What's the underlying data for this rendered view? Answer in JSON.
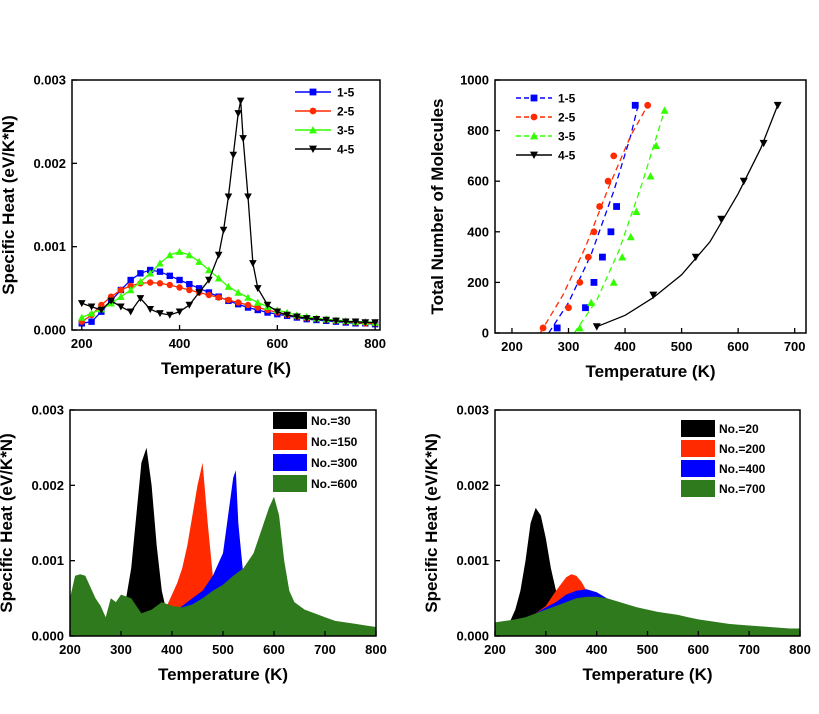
{
  "chart_data": [
    {
      "id": "a",
      "type": "line",
      "xlabel": "Temperature (K)",
      "ylabel": "Specific Heat (eV/K*N)",
      "xlim": [
        180,
        810
      ],
      "ylim": [
        0,
        0.003
      ],
      "xticks": [
        200,
        400,
        600,
        800
      ],
      "yticks": [
        0,
        0.001,
        0.002,
        0.003
      ],
      "ytick_labels": [
        "0.000",
        "0.001",
        "0.002",
        "0.003"
      ],
      "legend_position": "top-right",
      "series": [
        {
          "name": "1-5",
          "color": "#0000ff",
          "marker": "square",
          "dash": "solid",
          "x": [
            200,
            220,
            240,
            260,
            280,
            300,
            320,
            340,
            360,
            380,
            400,
            420,
            440,
            460,
            480,
            500,
            520,
            540,
            560,
            580,
            600,
            620,
            640,
            660,
            680,
            700,
            720,
            740,
            760,
            780,
            800
          ],
          "y": [
            8e-05,
            0.0001,
            0.00022,
            0.00035,
            0.00048,
            0.0006,
            0.00068,
            0.00072,
            0.0007,
            0.00065,
            0.0006,
            0.00055,
            0.0005,
            0.00045,
            0.0004,
            0.00035,
            0.00031,
            0.00027,
            0.00024,
            0.00021,
            0.00019,
            0.00017,
            0.00015,
            0.00013,
            0.00012,
            0.00011,
            0.0001,
            9e-05,
            8e-05,
            8e-05,
            7e-05
          ]
        },
        {
          "name": "2-5",
          "color": "#ff2a00",
          "marker": "circle",
          "dash": "solid",
          "x": [
            200,
            220,
            240,
            260,
            280,
            300,
            320,
            340,
            360,
            380,
            400,
            420,
            440,
            460,
            480,
            500,
            520,
            540,
            560,
            580,
            600,
            620,
            640,
            660,
            680,
            700,
            720,
            740,
            760,
            780,
            800
          ],
          "y": [
            0.0001,
            0.00018,
            0.0003,
            0.0004,
            0.00048,
            0.00053,
            0.00056,
            0.00057,
            0.00056,
            0.00054,
            0.00051,
            0.00048,
            0.00045,
            0.00042,
            0.00039,
            0.00036,
            0.00033,
            0.0003,
            0.00027,
            0.00024,
            0.00021,
            0.00018,
            0.00016,
            0.00014,
            0.00013,
            0.00012,
            0.00011,
            0.0001,
            9e-05,
            8e-05,
            8e-05
          ]
        },
        {
          "name": "3-5",
          "color": "#33ff00",
          "marker": "triangle-up",
          "dash": "solid",
          "x": [
            200,
            220,
            240,
            260,
            280,
            300,
            320,
            340,
            360,
            380,
            400,
            420,
            440,
            460,
            480,
            500,
            520,
            540,
            560,
            580,
            600,
            620,
            640,
            660,
            680,
            700,
            720,
            740,
            760,
            780,
            800
          ],
          "y": [
            0.00015,
            0.0002,
            0.00025,
            0.00032,
            0.0004,
            0.00048,
            0.00058,
            0.00068,
            0.0008,
            0.0009,
            0.00094,
            0.0009,
            0.00082,
            0.00072,
            0.00062,
            0.00052,
            0.00045,
            0.00039,
            0.00033,
            0.00028,
            0.00024,
            0.00021,
            0.00018,
            0.00016,
            0.00014,
            0.00013,
            0.00012,
            0.00011,
            0.0001,
            0.0001,
            9e-05
          ]
        },
        {
          "name": "4-5",
          "color": "#000000",
          "marker": "triangle-down",
          "dash": "solid",
          "x": [
            200,
            220,
            240,
            260,
            280,
            300,
            320,
            340,
            360,
            380,
            400,
            420,
            440,
            460,
            480,
            490,
            500,
            510,
            520,
            525,
            530,
            540,
            550,
            560,
            580,
            600,
            620,
            640,
            660,
            680,
            700,
            720,
            740,
            760,
            780,
            800
          ],
          "y": [
            0.00032,
            0.00028,
            0.00024,
            0.00035,
            0.00028,
            0.00022,
            0.00038,
            0.00025,
            0.0002,
            0.00018,
            0.00022,
            0.0003,
            0.00045,
            0.0006,
            0.0009,
            0.0012,
            0.0016,
            0.0021,
            0.0026,
            0.00275,
            0.0023,
            0.0016,
            0.0008,
            0.0005,
            0.0003,
            0.00022,
            0.00018,
            0.00016,
            0.00014,
            0.00013,
            0.00012,
            0.00011,
            0.0001,
            0.0001,
            9e-05,
            9e-05
          ]
        }
      ]
    },
    {
      "id": "b",
      "type": "line",
      "xlabel": "Temperature (K)",
      "ylabel": "Total Number of Molecules",
      "xlim": [
        170,
        720
      ],
      "ylim": [
        0,
        1000
      ],
      "xticks": [
        200,
        300,
        400,
        500,
        600,
        700
      ],
      "yticks": [
        0,
        200,
        400,
        600,
        800,
        1000
      ],
      "ytick_labels": [
        "0",
        "200",
        "400",
        "600",
        "800",
        "1000"
      ],
      "legend_position": "top-left",
      "series": [
        {
          "name": "1-5",
          "color": "#0000ff",
          "marker": "square",
          "dash": "dashed",
          "x": [
            280,
            330,
            345,
            360,
            375,
            385,
            418
          ],
          "y": [
            20,
            100,
            200,
            300,
            400,
            500,
            900
          ],
          "fit_x": [
            265,
            300,
            340,
            380,
            410,
            423
          ],
          "fit_y": [
            0,
            120,
            310,
            560,
            780,
            900
          ]
        },
        {
          "name": "2-5",
          "color": "#ff2a00",
          "marker": "circle",
          "dash": "dashed",
          "x": [
            255,
            300,
            320,
            335,
            345,
            355,
            370,
            380,
            440
          ],
          "y": [
            20,
            100,
            200,
            300,
            400,
            500,
            600,
            700,
            900
          ],
          "fit_x": [
            250,
            290,
            330,
            370,
            410,
            440
          ],
          "fit_y": [
            0,
            150,
            340,
            570,
            780,
            900
          ]
        },
        {
          "name": "3-5",
          "color": "#33ff00",
          "marker": "triangle-up",
          "dash": "dashed",
          "x": [
            320,
            340,
            380,
            395,
            410,
            420,
            445,
            455,
            470
          ],
          "y": [
            20,
            120,
            200,
            300,
            380,
            480,
            620,
            740,
            880
          ],
          "fit_x": [
            310,
            350,
            390,
            430,
            470
          ],
          "fit_y": [
            0,
            130,
            330,
            590,
            880
          ]
        },
        {
          "name": "4-5",
          "color": "#000000",
          "marker": "triangle-down",
          "dash": "solid",
          "x": [
            350,
            450,
            525,
            570,
            610,
            645,
            670
          ],
          "y": [
            25,
            150,
            300,
            450,
            600,
            750,
            900
          ],
          "fit_x": [
            350,
            400,
            450,
            500,
            550,
            600,
            640,
            670
          ],
          "fit_y": [
            25,
            70,
            140,
            230,
            360,
            550,
            730,
            900
          ]
        }
      ]
    },
    {
      "id": "c",
      "type": "area",
      "xlabel": "Temperature (K)",
      "ylabel": "Specific Heat (eV/K*N)",
      "xlim": [
        200,
        800
      ],
      "ylim": [
        0,
        0.003
      ],
      "xticks": [
        200,
        300,
        400,
        500,
        600,
        700,
        800
      ],
      "yticks": [
        0,
        0.001,
        0.002,
        0.003
      ],
      "ytick_labels": [
        "0.000",
        "0.001",
        "0.002",
        "0.003"
      ],
      "legend_position": "top-right",
      "series": [
        {
          "name": "No.=30",
          "color": "#000000",
          "x": [
            300,
            310,
            320,
            330,
            340,
            350,
            360,
            370,
            380,
            390,
            400
          ],
          "y": [
            0.0003,
            0.0005,
            0.0009,
            0.0016,
            0.0023,
            0.0025,
            0.002,
            0.0012,
            0.0006,
            0.0003,
            0.00025
          ]
        },
        {
          "name": "No.=150",
          "color": "#ff2a00",
          "x": [
            370,
            390,
            410,
            420,
            430,
            440,
            450,
            460,
            470,
            480,
            490,
            500
          ],
          "y": [
            0.0002,
            0.0004,
            0.0007,
            0.0009,
            0.0012,
            0.0016,
            0.002,
            0.0023,
            0.0015,
            0.0008,
            0.0005,
            0.0004
          ]
        },
        {
          "name": "No.=300",
          "color": "#0000ff",
          "x": [
            380,
            400,
            420,
            440,
            460,
            480,
            500,
            510,
            520,
            525,
            530,
            540,
            550,
            560
          ],
          "y": [
            0.0002,
            0.0003,
            0.0004,
            0.0005,
            0.0006,
            0.0008,
            0.0011,
            0.0016,
            0.0021,
            0.0022,
            0.0015,
            0.0008,
            0.0006,
            0.0005
          ]
        },
        {
          "name": "No.=600",
          "color": "#2e7a1c",
          "x": [
            200,
            210,
            220,
            230,
            240,
            250,
            260,
            270,
            280,
            290,
            300,
            320,
            340,
            360,
            380,
            400,
            420,
            440,
            460,
            480,
            500,
            520,
            540,
            560,
            580,
            590,
            600,
            610,
            620,
            630,
            640,
            660,
            680,
            700,
            720,
            740,
            760,
            780,
            800
          ],
          "y": [
            0.0005,
            0.0008,
            0.00082,
            0.0008,
            0.00065,
            0.0005,
            0.0004,
            0.00025,
            0.0005,
            0.00045,
            0.00055,
            0.0005,
            0.0003,
            0.00035,
            0.00045,
            0.0004,
            0.00038,
            0.00042,
            0.0005,
            0.0006,
            0.00068,
            0.0008,
            0.0009,
            0.0011,
            0.0015,
            0.0017,
            0.00185,
            0.0016,
            0.001,
            0.0006,
            0.00045,
            0.00035,
            0.0003,
            0.00025,
            0.0002,
            0.00018,
            0.00016,
            0.00014,
            0.00012
          ]
        }
      ]
    },
    {
      "id": "d",
      "type": "area",
      "xlabel": "Temperature (K)",
      "ylabel": "Specific Heat (eV/K*N)",
      "xlim": [
        200,
        800
      ],
      "ylim": [
        0,
        0.003
      ],
      "xticks": [
        200,
        300,
        400,
        500,
        600,
        700,
        800
      ],
      "yticks": [
        0,
        0.001,
        0.002,
        0.003
      ],
      "ytick_labels": [
        "0.000",
        "0.001",
        "0.002",
        "0.003"
      ],
      "legend_position": "top-right",
      "series": [
        {
          "name": "No.=20",
          "color": "#000000",
          "x": [
            220,
            230,
            240,
            250,
            260,
            270,
            280,
            290,
            300,
            310,
            320,
            330,
            340
          ],
          "y": [
            0.00015,
            0.0002,
            0.00035,
            0.0006,
            0.001,
            0.0015,
            0.0017,
            0.0016,
            0.0013,
            0.0009,
            0.0006,
            0.0004,
            0.0003
          ]
        },
        {
          "name": "No.=200",
          "color": "#ff2a00",
          "x": [
            260,
            280,
            300,
            320,
            340,
            350,
            360,
            370,
            380,
            400,
            420
          ],
          "y": [
            0.0002,
            0.0003,
            0.0004,
            0.0006,
            0.00078,
            0.00082,
            0.0008,
            0.00072,
            0.0006,
            0.00045,
            0.00035
          ]
        },
        {
          "name": "No.=400",
          "color": "#0000ff",
          "x": [
            260,
            280,
            300,
            320,
            340,
            360,
            380,
            400,
            420,
            440,
            460
          ],
          "y": [
            0.0002,
            0.0003,
            0.00038,
            0.00045,
            0.00055,
            0.0006,
            0.00062,
            0.00058,
            0.0005,
            0.00045,
            0.0004
          ]
        },
        {
          "name": "No.=700",
          "color": "#2e7a1c",
          "x": [
            200,
            220,
            240,
            260,
            280,
            300,
            320,
            340,
            360,
            380,
            400,
            420,
            440,
            460,
            480,
            500,
            520,
            540,
            560,
            580,
            600,
            620,
            640,
            660,
            680,
            700,
            720,
            740,
            760,
            780,
            800
          ],
          "y": [
            0.00018,
            0.0002,
            0.00022,
            0.00025,
            0.0003,
            0.00035,
            0.0004,
            0.00045,
            0.0005,
            0.00052,
            0.00052,
            0.0005,
            0.00046,
            0.00042,
            0.00038,
            0.00035,
            0.00032,
            0.0003,
            0.00028,
            0.00025,
            0.00022,
            0.0002,
            0.00018,
            0.00016,
            0.00015,
            0.00014,
            0.00013,
            0.00012,
            0.00011,
            0.0001,
            0.0001
          ]
        }
      ]
    }
  ]
}
